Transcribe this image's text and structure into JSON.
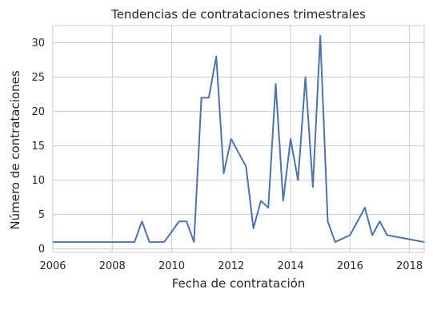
{
  "chart_data": {
    "type": "line",
    "title": "Tendencias de contrataciones trimestrales",
    "xlabel": "Fecha de contratación",
    "ylabel": "Número de contrataciones",
    "xlim": [
      "2006-01-01",
      "2018-06-30"
    ],
    "ylim": [
      -0.5,
      32.5
    ],
    "x_ticks": [
      "2006",
      "2008",
      "2010",
      "2012",
      "2014",
      "2016",
      "2018"
    ],
    "y_ticks": [
      0,
      5,
      10,
      15,
      20,
      25,
      30
    ],
    "grid": true,
    "legend": "none",
    "colors": {
      "line": "#4c72b0",
      "grid": "#cccccc",
      "text": "#262626"
    },
    "series": [
      {
        "x": [
          "2006-01-01",
          "2008-10-01",
          "2009-01-01",
          "2009-04-01",
          "2009-10-01",
          "2010-04-01",
          "2010-07-01",
          "2010-10-01",
          "2011-01-01",
          "2011-04-01",
          "2011-07-01",
          "2011-10-01",
          "2012-01-01",
          "2012-07-01",
          "2012-10-01",
          "2013-01-01",
          "2013-04-01",
          "2013-07-01",
          "2013-10-01",
          "2014-01-01",
          "2014-04-01",
          "2014-07-01",
          "2014-10-01",
          "2015-01-01",
          "2015-04-01",
          "2015-07-01",
          "2016-01-01",
          "2016-07-01",
          "2016-10-01",
          "2017-01-01",
          "2017-04-01",
          "2018-07-01"
        ],
        "values": [
          1,
          1,
          4,
          1,
          1,
          4,
          4,
          1,
          22,
          22,
          28,
          11,
          16,
          12,
          3,
          7,
          6,
          24,
          7,
          16,
          10,
          25,
          9,
          31,
          4,
          1,
          2,
          6,
          2,
          4,
          2,
          1
        ]
      }
    ]
  }
}
